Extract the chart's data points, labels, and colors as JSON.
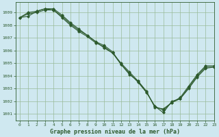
{
  "background_color": "#cfe8f0",
  "grid_color": "#99bb99",
  "line_color": "#2d5a2d",
  "marker_color": "#2d5a2d",
  "title": "Graphe pression niveau de la mer (hPa)",
  "xlim": [
    -0.5,
    23
  ],
  "ylim": [
    1000.5,
    1009.8
  ],
  "yticks": [
    1001,
    1002,
    1003,
    1004,
    1005,
    1006,
    1007,
    1008,
    1009
  ],
  "xticks": [
    0,
    1,
    2,
    3,
    4,
    5,
    6,
    7,
    8,
    9,
    10,
    11,
    12,
    13,
    14,
    15,
    16,
    17,
    18,
    19,
    20,
    21,
    22,
    23
  ],
  "series1": [
    1008.6,
    1008.9,
    1009.0,
    1009.2,
    1009.2,
    1008.6,
    1008.0,
    1007.5,
    1007.1,
    1006.6,
    1006.3,
    1005.8,
    1005.0,
    1004.3,
    1003.6,
    1002.8,
    1001.5,
    1001.4,
    1001.9,
    1002.3,
    1003.2,
    1004.1,
    1004.8,
    1004.8
  ],
  "series2": [
    1008.6,
    1009.0,
    1009.1,
    1009.3,
    1009.3,
    1008.8,
    1008.2,
    1007.7,
    1007.2,
    1006.7,
    1006.4,
    1005.9,
    1004.9,
    1004.1,
    1003.6,
    1002.7,
    1001.6,
    1001.3,
    1001.9,
    1002.2,
    1003.1,
    1004.0,
    1004.7,
    1004.7
  ],
  "series3": [
    1008.6,
    1008.7,
    1009.1,
    1009.3,
    1009.2,
    1008.7,
    1008.1,
    1007.6,
    1007.2,
    1006.7,
    1006.2,
    1005.8,
    1004.9,
    1004.2,
    1003.5,
    1002.7,
    1001.6,
    1001.1,
    1002.0,
    1002.2,
    1003.0,
    1003.9,
    1004.6,
    1004.7
  ]
}
